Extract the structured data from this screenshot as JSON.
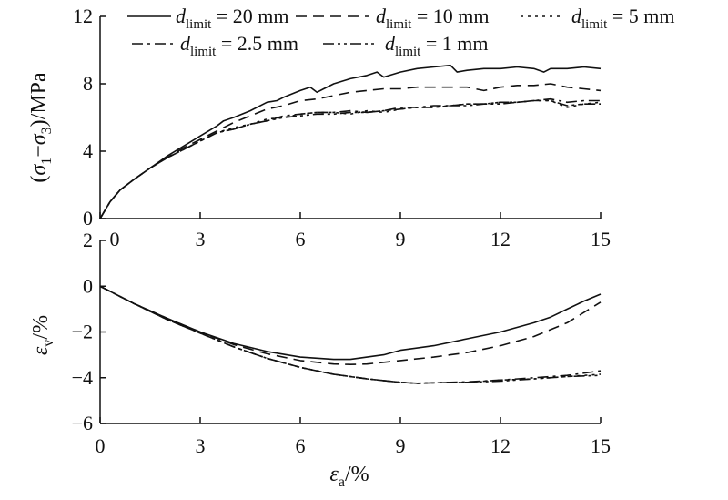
{
  "chart_data": [
    {
      "type": "line",
      "panel": "top",
      "ylabel": "(σ1−σ3)/MPa",
      "ylabel_parts": {
        "open": "(",
        "sym1": "σ",
        "sub1": "1",
        "minus": "−",
        "sym2": "σ",
        "sub2": "3",
        "close": ")/MPa"
      },
      "xlim": [
        0,
        15
      ],
      "ylim": [
        0,
        12
      ],
      "x_ticks": [
        0,
        3,
        6,
        9,
        12,
        15
      ],
      "y_ticks": [
        0,
        4,
        8,
        12
      ],
      "grid": false,
      "legend_position": "top",
      "series": [
        {
          "name": "d_limit = 20 mm",
          "dash": "solid",
          "points": [
            [
              0,
              0
            ],
            [
              0.3,
              1.0
            ],
            [
              0.6,
              1.7
            ],
            [
              1,
              2.3
            ],
            [
              1.5,
              3.0
            ],
            [
              2,
              3.7
            ],
            [
              2.5,
              4.3
            ],
            [
              3,
              4.9
            ],
            [
              3.5,
              5.5
            ],
            [
              3.7,
              5.8
            ],
            [
              4,
              6.0
            ],
            [
              4.5,
              6.4
            ],
            [
              5,
              6.9
            ],
            [
              5.3,
              7.0
            ],
            [
              5.5,
              7.2
            ],
            [
              6,
              7.6
            ],
            [
              6.3,
              7.8
            ],
            [
              6.5,
              7.5
            ],
            [
              6.7,
              7.7
            ],
            [
              7,
              8.0
            ],
            [
              7.5,
              8.3
            ],
            [
              8,
              8.5
            ],
            [
              8.3,
              8.7
            ],
            [
              8.5,
              8.4
            ],
            [
              9,
              8.7
            ],
            [
              9.5,
              8.9
            ],
            [
              10,
              9.0
            ],
            [
              10.5,
              9.1
            ],
            [
              10.7,
              8.7
            ],
            [
              11,
              8.8
            ],
            [
              11.5,
              8.9
            ],
            [
              12,
              8.9
            ],
            [
              12.5,
              9.0
            ],
            [
              13,
              8.9
            ],
            [
              13.3,
              8.7
            ],
            [
              13.5,
              8.9
            ],
            [
              14,
              8.9
            ],
            [
              14.5,
              9.0
            ],
            [
              15,
              8.9
            ]
          ]
        },
        {
          "name": "d_limit = 10 mm",
          "dash": "dashed",
          "points": [
            [
              0,
              0
            ],
            [
              0.3,
              1.0
            ],
            [
              0.6,
              1.7
            ],
            [
              1,
              2.3
            ],
            [
              1.5,
              3.0
            ],
            [
              2,
              3.6
            ],
            [
              2.5,
              4.2
            ],
            [
              3,
              4.7
            ],
            [
              3.5,
              5.2
            ],
            [
              4,
              5.7
            ],
            [
              4.5,
              6.1
            ],
            [
              5,
              6.5
            ],
            [
              5.5,
              6.7
            ],
            [
              6,
              7.0
            ],
            [
              6.5,
              7.1
            ],
            [
              7,
              7.3
            ],
            [
              7.5,
              7.5
            ],
            [
              8,
              7.6
            ],
            [
              8.5,
              7.7
            ],
            [
              9,
              7.7
            ],
            [
              9.5,
              7.8
            ],
            [
              10,
              7.8
            ],
            [
              10.5,
              7.8
            ],
            [
              11,
              7.8
            ],
            [
              11.5,
              7.6
            ],
            [
              12,
              7.8
            ],
            [
              12.5,
              7.9
            ],
            [
              13,
              7.9
            ],
            [
              13.5,
              8.0
            ],
            [
              14,
              7.8
            ],
            [
              14.5,
              7.7
            ],
            [
              15,
              7.6
            ]
          ]
        },
        {
          "name": "d_limit = 5 mm",
          "dash": "dotted",
          "points": [
            [
              0,
              0
            ],
            [
              0.3,
              1.0
            ],
            [
              0.6,
              1.7
            ],
            [
              1,
              2.3
            ],
            [
              1.5,
              3.0
            ],
            [
              2,
              3.6
            ],
            [
              2.5,
              4.1
            ],
            [
              3,
              4.6
            ],
            [
              3.5,
              5.1
            ],
            [
              4,
              5.4
            ],
            [
              4.5,
              5.6
            ],
            [
              5,
              5.9
            ],
            [
              5.5,
              6.0
            ],
            [
              6,
              6.2
            ],
            [
              6.5,
              6.3
            ],
            [
              7,
              6.3
            ],
            [
              7.5,
              6.2
            ],
            [
              8,
              6.4
            ],
            [
              8.5,
              6.3
            ],
            [
              9,
              6.5
            ],
            [
              9.5,
              6.6
            ],
            [
              10,
              6.6
            ],
            [
              10.5,
              6.7
            ],
            [
              11,
              6.8
            ],
            [
              11.5,
              6.8
            ],
            [
              12,
              6.9
            ],
            [
              12.5,
              6.9
            ],
            [
              13,
              7.0
            ],
            [
              13.5,
              7.0
            ],
            [
              14,
              6.6
            ],
            [
              14.5,
              6.8
            ],
            [
              15,
              6.9
            ]
          ]
        },
        {
          "name": "d_limit = 2.5 mm",
          "dash": "dashdot",
          "points": [
            [
              0,
              0
            ],
            [
              0.3,
              1.0
            ],
            [
              0.6,
              1.7
            ],
            [
              1,
              2.3
            ],
            [
              1.5,
              3.0
            ],
            [
              2,
              3.6
            ],
            [
              2.5,
              4.1
            ],
            [
              3,
              4.6
            ],
            [
              3.5,
              5.1
            ],
            [
              4,
              5.3
            ],
            [
              4.5,
              5.6
            ],
            [
              5,
              5.8
            ],
            [
              5.5,
              6.1
            ],
            [
              6,
              6.2
            ],
            [
              6.5,
              6.3
            ],
            [
              7,
              6.3
            ],
            [
              7.5,
              6.4
            ],
            [
              8,
              6.3
            ],
            [
              8.5,
              6.4
            ],
            [
              9,
              6.6
            ],
            [
              9.5,
              6.6
            ],
            [
              10,
              6.7
            ],
            [
              10.5,
              6.7
            ],
            [
              11,
              6.8
            ],
            [
              11.5,
              6.8
            ],
            [
              12,
              6.9
            ],
            [
              12.5,
              6.9
            ],
            [
              13,
              7.0
            ],
            [
              13.5,
              7.1
            ],
            [
              14,
              6.9
            ],
            [
              14.5,
              7.0
            ],
            [
              15,
              7.0
            ]
          ]
        },
        {
          "name": "d_limit = 1 mm",
          "dash": "dashdotdot",
          "points": [
            [
              0,
              0
            ],
            [
              0.3,
              1.0
            ],
            [
              0.6,
              1.7
            ],
            [
              1,
              2.3
            ],
            [
              1.5,
              3.0
            ],
            [
              2,
              3.6
            ],
            [
              2.5,
              4.1
            ],
            [
              3,
              4.6
            ],
            [
              3.5,
              5.1
            ],
            [
              4,
              5.3
            ],
            [
              4.5,
              5.6
            ],
            [
              5,
              5.8
            ],
            [
              5.5,
              6.0
            ],
            [
              6,
              6.1
            ],
            [
              6.5,
              6.2
            ],
            [
              7,
              6.2
            ],
            [
              7.5,
              6.3
            ],
            [
              8,
              6.3
            ],
            [
              8.5,
              6.4
            ],
            [
              9,
              6.5
            ],
            [
              9.5,
              6.6
            ],
            [
              10,
              6.6
            ],
            [
              10.5,
              6.7
            ],
            [
              11,
              6.7
            ],
            [
              11.5,
              6.8
            ],
            [
              12,
              6.8
            ],
            [
              12.5,
              6.9
            ],
            [
              13,
              7.0
            ],
            [
              13.5,
              7.0
            ],
            [
              14,
              6.7
            ],
            [
              14.5,
              6.8
            ],
            [
              15,
              6.8
            ]
          ]
        }
      ]
    },
    {
      "type": "line",
      "panel": "bottom",
      "xlabel": "εa/%",
      "xlabel_parts": {
        "sym": "ε",
        "sub": "a",
        "rest": "/%"
      },
      "ylabel": "εv/%",
      "ylabel_parts": {
        "sym": "ε",
        "sub": "v",
        "rest": "/%"
      },
      "xlim": [
        0,
        15
      ],
      "ylim": [
        -6,
        2
      ],
      "x_ticks": [
        0,
        3,
        6,
        9,
        12,
        15
      ],
      "y_ticks": [
        -6,
        -4,
        -2,
        0,
        2
      ],
      "grid": false,
      "series": [
        {
          "name": "d_limit = 20 mm",
          "dash": "solid",
          "points": [
            [
              0,
              0
            ],
            [
              1,
              -0.75
            ],
            [
              2,
              -1.4
            ],
            [
              3,
              -2.0
            ],
            [
              4,
              -2.5
            ],
            [
              5,
              -2.85
            ],
            [
              6,
              -3.1
            ],
            [
              7,
              -3.2
            ],
            [
              7.5,
              -3.2
            ],
            [
              8,
              -3.1
            ],
            [
              8.5,
              -3.0
            ],
            [
              9,
              -2.8
            ],
            [
              10,
              -2.6
            ],
            [
              11,
              -2.3
            ],
            [
              12,
              -2.0
            ],
            [
              13,
              -1.6
            ],
            [
              13.5,
              -1.35
            ],
            [
              14,
              -1.0
            ],
            [
              14.5,
              -0.65
            ],
            [
              15,
              -0.35
            ]
          ]
        },
        {
          "name": "d_limit = 10 mm",
          "dash": "dashed",
          "points": [
            [
              0,
              0
            ],
            [
              1,
              -0.75
            ],
            [
              2,
              -1.4
            ],
            [
              3,
              -2.0
            ],
            [
              4,
              -2.55
            ],
            [
              5,
              -2.95
            ],
            [
              6,
              -3.25
            ],
            [
              7,
              -3.4
            ],
            [
              7.5,
              -3.42
            ],
            [
              8,
              -3.4
            ],
            [
              9,
              -3.25
            ],
            [
              10,
              -3.1
            ],
            [
              10.5,
              -3.0
            ],
            [
              11,
              -2.9
            ],
            [
              12,
              -2.6
            ],
            [
              13,
              -2.2
            ],
            [
              14,
              -1.6
            ],
            [
              15,
              -0.7
            ]
          ]
        },
        {
          "name": "d_limit = 5 mm",
          "dash": "dotted",
          "points": [
            [
              0,
              0
            ],
            [
              1,
              -0.75
            ],
            [
              2,
              -1.45
            ],
            [
              3,
              -2.05
            ],
            [
              4,
              -2.65
            ],
            [
              5,
              -3.15
            ],
            [
              6,
              -3.55
            ],
            [
              7,
              -3.85
            ],
            [
              8,
              -4.05
            ],
            [
              9,
              -4.2
            ],
            [
              9.5,
              -4.25
            ],
            [
              10,
              -4.22
            ],
            [
              11,
              -4.2
            ],
            [
              12,
              -4.1
            ],
            [
              13,
              -4.05
            ],
            [
              14,
              -3.95
            ],
            [
              15,
              -3.85
            ]
          ]
        },
        {
          "name": "d_limit = 2.5 mm",
          "dash": "dashdot",
          "points": [
            [
              0,
              0
            ],
            [
              1,
              -0.75
            ],
            [
              2,
              -1.45
            ],
            [
              3,
              -2.05
            ],
            [
              4,
              -2.65
            ],
            [
              5,
              -3.15
            ],
            [
              6,
              -3.55
            ],
            [
              7,
              -3.85
            ],
            [
              8,
              -4.05
            ],
            [
              9,
              -4.2
            ],
            [
              9.5,
              -4.25
            ],
            [
              10,
              -4.22
            ],
            [
              11,
              -4.18
            ],
            [
              12,
              -4.1
            ],
            [
              13,
              -4.0
            ],
            [
              14,
              -3.9
            ],
            [
              15,
              -3.7
            ]
          ]
        },
        {
          "name": "d_limit = 1 mm",
          "dash": "dashdotdot",
          "points": [
            [
              0,
              0
            ],
            [
              1,
              -0.75
            ],
            [
              2,
              -1.45
            ],
            [
              3,
              -2.05
            ],
            [
              4,
              -2.65
            ],
            [
              5,
              -3.15
            ],
            [
              6,
              -3.55
            ],
            [
              7,
              -3.85
            ],
            [
              8,
              -4.05
            ],
            [
              9,
              -4.2
            ],
            [
              9.5,
              -4.24
            ],
            [
              10,
              -4.22
            ],
            [
              11,
              -4.2
            ],
            [
              12,
              -4.15
            ],
            [
              13,
              -4.05
            ],
            [
              14,
              -3.95
            ],
            [
              15,
              -3.9
            ]
          ]
        }
      ]
    }
  ],
  "legend": [
    {
      "sym": "d",
      "sub": "limit",
      "rest": " = 20 mm",
      "dash": "solid"
    },
    {
      "sym": "d",
      "sub": "limit",
      "rest": " = 10 mm",
      "dash": "dashed"
    },
    {
      "sym": "d",
      "sub": "limit",
      "rest": " = 5 mm",
      "dash": "dotted"
    },
    {
      "sym": "d",
      "sub": "limit",
      "rest": " = 2.5 mm",
      "dash": "dashdot"
    },
    {
      "sym": "d",
      "sub": "limit",
      "rest": " = 1 mm",
      "dash": "dashdotdot"
    }
  ]
}
